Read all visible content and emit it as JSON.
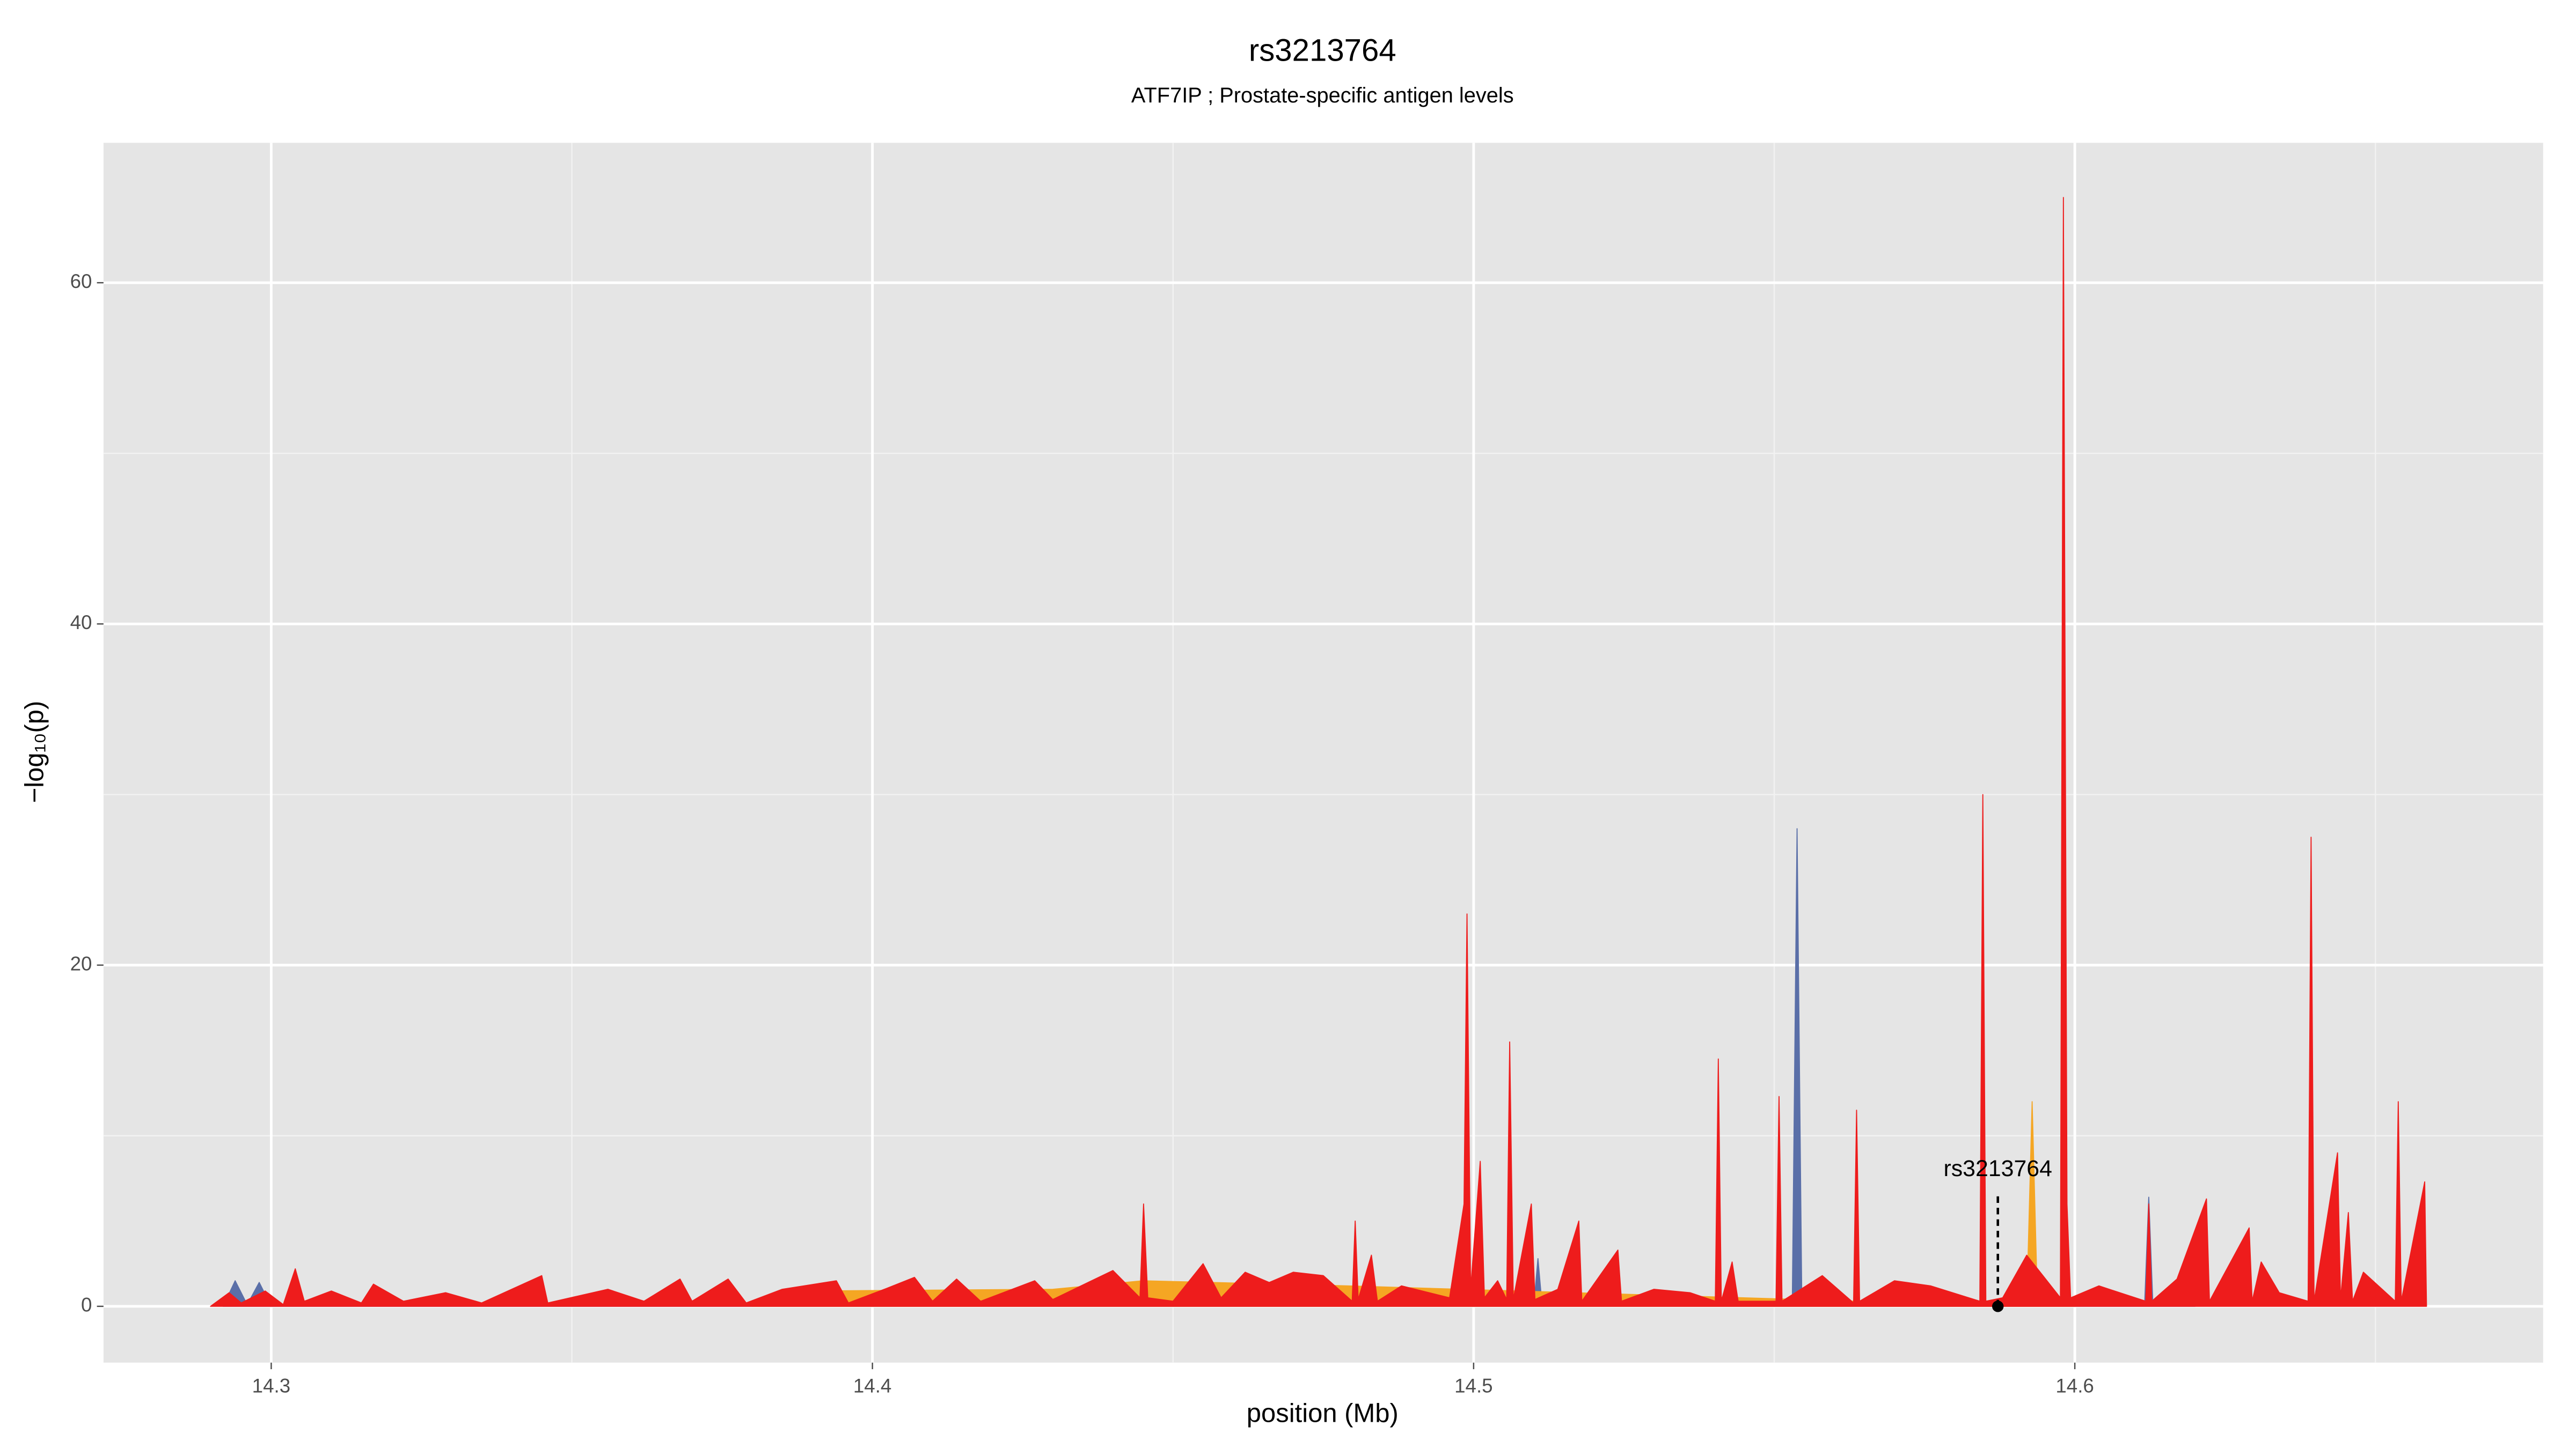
{
  "chart_data": {
    "type": "area",
    "title": "rs3213764",
    "subtitle": "ATF7IP ; Prostate-specific antigen levels",
    "x_label": "position (Mb)",
    "y_label": "−log₁₀(p)",
    "xlim": [
      14.2721,
      14.6779
    ],
    "ylim": [
      -3.3,
      68.2
    ],
    "xticks": [
      14.3,
      14.4,
      14.5,
      14.6
    ],
    "yticks": [
      0,
      20,
      40,
      60
    ],
    "x_minor_grid": [
      14.35,
      14.45,
      14.55,
      14.65
    ],
    "y_minor_grid": [
      10,
      30,
      50
    ],
    "grid": true,
    "series": [
      {
        "color": "#5a6fa8",
        "x": [
          14.292,
          14.294,
          14.296,
          14.298,
          14.3,
          14.51,
          14.5107,
          14.5114,
          14.553,
          14.5538,
          14.5546,
          14.6116,
          14.6123,
          14.613,
          14.62
        ],
        "values": [
          0,
          1.5,
          0.1,
          1.4,
          0,
          0,
          2.8,
          0,
          0,
          28.0,
          0,
          0,
          6.4,
          0,
          0
        ]
      },
      {
        "color": "#f5a623",
        "x": [
          14.38,
          14.39,
          14.43,
          14.445,
          14.479,
          14.592,
          14.5929,
          14.5938,
          14.6
        ],
        "values": [
          0,
          0.9,
          1.0,
          1.5,
          1.2,
          0,
          12.0,
          0,
          0
        ]
      },
      {
        "color": "#ee1c1c",
        "x": [
          14.2899,
          14.293,
          14.295,
          14.299,
          14.302,
          14.304,
          14.3055,
          14.31,
          14.315,
          14.317,
          14.322,
          14.329,
          14.335,
          14.345,
          14.346,
          14.356,
          14.362,
          14.368,
          14.37,
          14.376,
          14.379,
          14.385,
          14.394,
          14.396,
          14.402,
          14.407,
          14.41,
          14.414,
          14.418,
          14.427,
          14.43,
          14.44,
          14.4445,
          14.4451,
          14.4458,
          14.45,
          14.455,
          14.458,
          14.462,
          14.466,
          14.47,
          14.475,
          14.4798,
          14.4803,
          14.4808,
          14.483,
          14.484,
          14.488,
          14.496,
          14.4984,
          14.4989,
          14.4995,
          14.5011,
          14.5018,
          14.504,
          14.5055,
          14.506,
          14.5066,
          14.5096,
          14.5102,
          14.514,
          14.5175,
          14.518,
          14.524,
          14.5246,
          14.53,
          14.536,
          14.5402,
          14.5407,
          14.5412,
          14.543,
          14.544,
          14.5503,
          14.5508,
          14.5513,
          14.558,
          14.5632,
          14.5637,
          14.5642,
          14.57,
          14.576,
          14.5842,
          14.5847,
          14.5852,
          14.588,
          14.592,
          14.5976,
          14.5981,
          14.5987,
          14.5993,
          14.604,
          14.6118,
          14.6123,
          14.6128,
          14.617,
          14.6219,
          14.6224,
          14.629,
          14.6295,
          14.631,
          14.634,
          14.6388,
          14.6393,
          14.6398,
          14.6437,
          14.6442,
          14.6455,
          14.6462,
          14.648,
          14.6533,
          14.6538,
          14.6543,
          14.6582,
          14.6585
        ],
        "values": [
          0,
          0.8,
          0.2,
          0.9,
          0.1,
          2.2,
          0.3,
          0.9,
          0.2,
          1.3,
          0.3,
          0.8,
          0.2,
          1.8,
          0.2,
          1.0,
          0.3,
          1.6,
          0.3,
          1.6,
          0.2,
          1.0,
          1.5,
          0.2,
          1.0,
          1.7,
          0.3,
          1.6,
          0.3,
          1.5,
          0.4,
          2.1,
          0.5,
          6.0,
          0.5,
          0.3,
          2.5,
          0.5,
          2.0,
          1.4,
          2.0,
          1.8,
          0.3,
          5.0,
          0.4,
          3.0,
          0.3,
          1.2,
          0.5,
          6.0,
          23.0,
          1.0,
          8.5,
          0.5,
          1.5,
          0.4,
          15.5,
          0.4,
          6.0,
          0.4,
          1.0,
          5.0,
          0.3,
          3.3,
          0.3,
          1.0,
          0.8,
          0.3,
          14.5,
          0.3,
          2.6,
          0.3,
          0.3,
          12.3,
          0.3,
          1.8,
          0.2,
          11.5,
          0.3,
          1.5,
          1.2,
          0.3,
          30.0,
          0.3,
          0.5,
          3.0,
          0.5,
          65.0,
          6.0,
          0.5,
          1.2,
          0.3,
          6.0,
          0.3,
          1.6,
          6.3,
          0.3,
          4.6,
          0.3,
          2.6,
          0.8,
          0.3,
          27.5,
          0.3,
          9.0,
          0.4,
          5.5,
          0.3,
          2.0,
          0.3,
          12.0,
          0.3,
          7.3,
          0
        ]
      }
    ],
    "annotation": {
      "label": "rs3213764",
      "x": 14.5872,
      "y": 0
    }
  }
}
